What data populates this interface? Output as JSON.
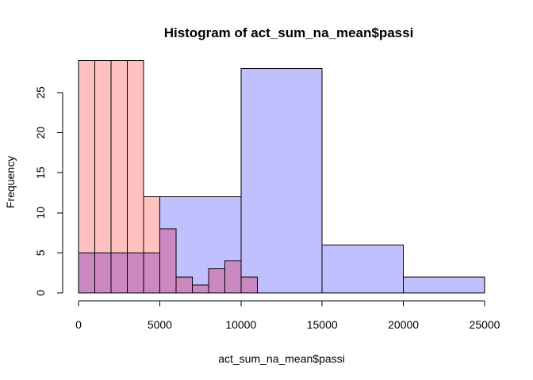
{
  "chart_data": {
    "type": "bar",
    "title": "Histogram of act_sum_na_mean$passi",
    "xlabel": "act_sum_na_mean$passi",
    "ylabel": "Frequency",
    "xlim": [
      0,
      25000
    ],
    "ylim": [
      0,
      29
    ],
    "x_ticks": [
      "0",
      "5000",
      "10000",
      "15000",
      "20000",
      "25000"
    ],
    "y_ticks": [
      "0",
      "5",
      "10",
      "15",
      "20",
      "25"
    ],
    "grid": false,
    "series": [
      {
        "color": "#ffc0c0",
        "bins": [
          {
            "from": 0,
            "to": 1000,
            "count": 29
          },
          {
            "from": 1000,
            "to": 2000,
            "count": 29
          },
          {
            "from": 2000,
            "to": 3000,
            "count": 29
          },
          {
            "from": 3000,
            "to": 4000,
            "count": 29
          },
          {
            "from": 4000,
            "to": 5000,
            "count": 12
          }
        ]
      },
      {
        "color": "#c0c0ff",
        "bins": [
          {
            "from": 0,
            "to": 5000,
            "count": 5
          },
          {
            "from": 5000,
            "to": 10000,
            "count": 12
          },
          {
            "from": 10000,
            "to": 15000,
            "count": 28
          },
          {
            "from": 15000,
            "to": 20000,
            "count": 6
          },
          {
            "from": 20000,
            "to": 25000,
            "count": 2
          }
        ]
      },
      {
        "color": "#cc88c0",
        "bins": [
          {
            "from": 0,
            "to": 1000,
            "count": 5
          },
          {
            "from": 1000,
            "to": 2000,
            "count": 5
          },
          {
            "from": 2000,
            "to": 3000,
            "count": 5
          },
          {
            "from": 3000,
            "to": 4000,
            "count": 5
          },
          {
            "from": 4000,
            "to": 5000,
            "count": 5
          },
          {
            "from": 5000,
            "to": 6000,
            "count": 8
          },
          {
            "from": 6000,
            "to": 7000,
            "count": 2
          },
          {
            "from": 7000,
            "to": 8000,
            "count": 1
          },
          {
            "from": 8000,
            "to": 9000,
            "count": 3
          },
          {
            "from": 9000,
            "to": 10000,
            "count": 4
          },
          {
            "from": 10000,
            "to": 11000,
            "count": 2
          }
        ]
      }
    ]
  }
}
